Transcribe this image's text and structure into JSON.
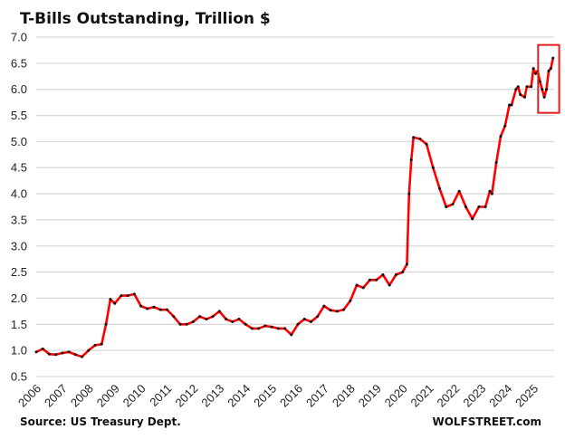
{
  "chart_data": {
    "type": "line",
    "title": "T-Bills Outstanding, Trillion $",
    "source": "Source: US Treasury Dept.",
    "watermark": "WOLFSTREET.com",
    "xlabel": "",
    "ylabel": "",
    "ylim": [
      0.5,
      7.0
    ],
    "yticks": [
      "0.5",
      "1.0",
      "1.5",
      "2.0",
      "2.5",
      "3.0",
      "3.5",
      "4.0",
      "4.5",
      "5.0",
      "5.5",
      "6.0",
      "6.5",
      "7.0"
    ],
    "xticks": [
      "2006",
      "2007",
      "2008",
      "2009",
      "2010",
      "2011",
      "2012",
      "2013",
      "2014",
      "2015",
      "2016",
      "2017",
      "2018",
      "2019",
      "2020",
      "2021",
      "2022",
      "2023",
      "2024",
      "2025"
    ],
    "grid": "horizontal",
    "line_color": "#ff0000",
    "marker_color": "#111111",
    "highlight_box": {
      "x": [
        "2025-04",
        "2025-12"
      ],
      "y": [
        5.55,
        6.85
      ],
      "color": "#e02020"
    },
    "x": [
      "2006-01",
      "2006-04",
      "2006-07",
      "2006-10",
      "2007-01",
      "2007-04",
      "2007-07",
      "2007-10",
      "2008-01",
      "2008-04",
      "2008-07",
      "2008-09",
      "2008-11",
      "2009-01",
      "2009-04",
      "2009-07",
      "2009-10",
      "2010-01",
      "2010-04",
      "2010-07",
      "2010-10",
      "2011-01",
      "2011-04",
      "2011-07",
      "2011-10",
      "2012-01",
      "2012-04",
      "2012-07",
      "2012-10",
      "2013-01",
      "2013-04",
      "2013-07",
      "2013-10",
      "2014-01",
      "2014-04",
      "2014-07",
      "2014-10",
      "2015-01",
      "2015-04",
      "2015-07",
      "2015-10",
      "2016-01",
      "2016-04",
      "2016-07",
      "2016-10",
      "2017-01",
      "2017-04",
      "2017-07",
      "2017-10",
      "2018-01",
      "2018-04",
      "2018-07",
      "2018-10",
      "2019-01",
      "2019-04",
      "2019-07",
      "2019-10",
      "2020-01",
      "2020-03",
      "2020-04",
      "2020-05",
      "2020-06",
      "2020-09",
      "2020-12",
      "2021-03",
      "2021-06",
      "2021-09",
      "2021-12",
      "2022-03",
      "2022-06",
      "2022-09",
      "2022-12",
      "2023-03",
      "2023-05",
      "2023-06",
      "2023-08",
      "2023-10",
      "2023-12",
      "2024-02",
      "2024-03",
      "2024-05",
      "2024-06",
      "2024-07",
      "2024-09",
      "2024-10",
      "2024-12",
      "2025-01",
      "2025-02",
      "2025-03",
      "2025-04",
      "2025-05",
      "2025-06",
      "2025-07",
      "2025-08",
      "2025-09",
      "2025-10"
    ],
    "values": [
      0.97,
      1.03,
      0.93,
      0.92,
      0.95,
      0.97,
      0.92,
      0.88,
      1.0,
      1.1,
      1.12,
      1.5,
      1.98,
      1.9,
      2.05,
      2.05,
      2.08,
      1.85,
      1.8,
      1.83,
      1.78,
      1.78,
      1.65,
      1.5,
      1.5,
      1.55,
      1.65,
      1.6,
      1.65,
      1.75,
      1.6,
      1.55,
      1.6,
      1.5,
      1.42,
      1.42,
      1.47,
      1.45,
      1.42,
      1.42,
      1.3,
      1.5,
      1.6,
      1.55,
      1.65,
      1.85,
      1.77,
      1.75,
      1.78,
      1.95,
      2.25,
      2.2,
      2.35,
      2.35,
      2.45,
      2.25,
      2.45,
      2.5,
      2.65,
      4.0,
      4.65,
      5.08,
      5.05,
      4.95,
      4.5,
      4.1,
      3.75,
      3.8,
      4.05,
      3.75,
      3.52,
      3.75,
      3.75,
      4.05,
      4.0,
      4.6,
      5.1,
      5.3,
      5.7,
      5.7,
      6.0,
      6.05,
      5.9,
      5.85,
      6.05,
      6.05,
      6.4,
      6.3,
      6.35,
      6.15,
      6.0,
      5.85,
      6.0,
      6.35,
      6.4,
      6.6
    ]
  }
}
